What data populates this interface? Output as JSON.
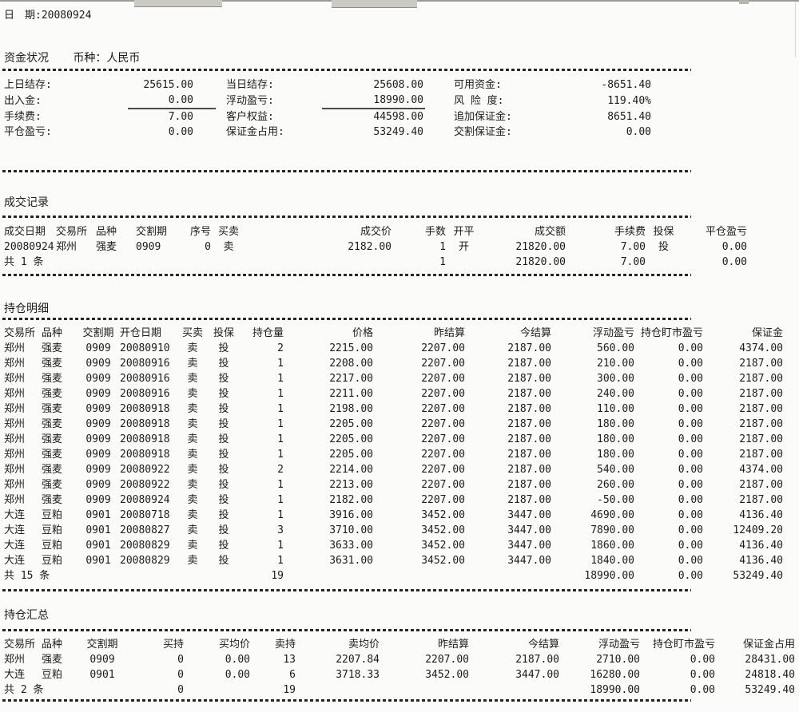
{
  "page": {
    "date_label": "日　期:",
    "date_value": "20080924"
  },
  "funds": {
    "title": "资金状况",
    "currency": "币种：人民币",
    "rows": [
      {
        "l1": "上日结存:",
        "v1": "25615.00",
        "l2": "当日结存:",
        "v2": "25608.00",
        "l3": "可用资金:",
        "v3": "-8651.40"
      },
      {
        "l1": "出入金:",
        "v1": "0.00",
        "l2": "浮动盈亏:",
        "v2": "18990.00",
        "l3": "风 险 度:",
        "v3": "119.40%"
      },
      {
        "l1": "手续费:",
        "v1": "7.00",
        "l2": "客户权益:",
        "v2": "44598.00",
        "l3": "追加保证金:",
        "v3": "8651.40"
      },
      {
        "l1": "平仓盈亏:",
        "v1": "0.00",
        "l2": "保证金占用:",
        "v2": "53249.40",
        "l3": "交割保证金:",
        "v3": "0.00"
      }
    ]
  },
  "trades": {
    "title": "成交记录",
    "headers": [
      "成交日期",
      "交易所",
      "品种",
      "交割期",
      "序号",
      "买卖",
      "成交价",
      "手数",
      "开平",
      "成交额",
      "手续费",
      "投保",
      "平仓盈亏"
    ],
    "rows": [
      [
        "20080924",
        "郑州",
        "强麦",
        "0909",
        "0",
        "卖",
        "2182.00",
        "1",
        "开",
        "21820.00",
        "7.00",
        "投",
        "0.00"
      ]
    ],
    "total_row": [
      "共 1 条",
      "",
      "",
      "",
      "",
      "",
      "",
      "1",
      "",
      "21820.00",
      "7.00",
      "",
      "0.00"
    ]
  },
  "positions": {
    "title": "持仓明细",
    "headers": [
      "交易所",
      "品种",
      "交割期",
      "开仓日期",
      "买卖",
      "投保",
      "持仓量",
      "价格",
      "昨结算",
      "今结算",
      "浮动盈亏",
      "持仓盯市盈亏",
      "保证金"
    ],
    "rows": [
      [
        "郑州",
        "强麦",
        "0909",
        "20080910",
        "卖",
        "投",
        "2",
        "2215.00",
        "2207.00",
        "2187.00",
        "560.00",
        "0.00",
        "4374.00"
      ],
      [
        "郑州",
        "强麦",
        "0909",
        "20080916",
        "卖",
        "投",
        "1",
        "2208.00",
        "2207.00",
        "2187.00",
        "210.00",
        "0.00",
        "2187.00"
      ],
      [
        "郑州",
        "强麦",
        "0909",
        "20080916",
        "卖",
        "投",
        "1",
        "2217.00",
        "2207.00",
        "2187.00",
        "300.00",
        "0.00",
        "2187.00"
      ],
      [
        "郑州",
        "强麦",
        "0909",
        "20080916",
        "卖",
        "投",
        "1",
        "2211.00",
        "2207.00",
        "2187.00",
        "240.00",
        "0.00",
        "2187.00"
      ],
      [
        "郑州",
        "强麦",
        "0909",
        "20080918",
        "卖",
        "投",
        "1",
        "2198.00",
        "2207.00",
        "2187.00",
        "110.00",
        "0.00",
        "2187.00"
      ],
      [
        "郑州",
        "强麦",
        "0909",
        "20080918",
        "卖",
        "投",
        "1",
        "2205.00",
        "2207.00",
        "2187.00",
        "180.00",
        "0.00",
        "2187.00"
      ],
      [
        "郑州",
        "强麦",
        "0909",
        "20080918",
        "卖",
        "投",
        "1",
        "2205.00",
        "2207.00",
        "2187.00",
        "180.00",
        "0.00",
        "2187.00"
      ],
      [
        "郑州",
        "强麦",
        "0909",
        "20080918",
        "卖",
        "投",
        "1",
        "2205.00",
        "2207.00",
        "2187.00",
        "180.00",
        "0.00",
        "2187.00"
      ],
      [
        "郑州",
        "强麦",
        "0909",
        "20080922",
        "卖",
        "投",
        "2",
        "2214.00",
        "2207.00",
        "2187.00",
        "540.00",
        "0.00",
        "4374.00"
      ],
      [
        "郑州",
        "强麦",
        "0909",
        "20080922",
        "卖",
        "投",
        "1",
        "2213.00",
        "2207.00",
        "2187.00",
        "260.00",
        "0.00",
        "2187.00"
      ],
      [
        "郑州",
        "强麦",
        "0909",
        "20080924",
        "卖",
        "投",
        "1",
        "2182.00",
        "2207.00",
        "2187.00",
        "-50.00",
        "0.00",
        "2187.00"
      ],
      [
        "大连",
        "豆粕",
        "0901",
        "20080718",
        "卖",
        "投",
        "1",
        "3916.00",
        "3452.00",
        "3447.00",
        "4690.00",
        "0.00",
        "4136.40"
      ],
      [
        "大连",
        "豆粕",
        "0901",
        "20080827",
        "卖",
        "投",
        "3",
        "3710.00",
        "3452.00",
        "3447.00",
        "7890.00",
        "0.00",
        "12409.20"
      ],
      [
        "大连",
        "豆粕",
        "0901",
        "20080829",
        "卖",
        "投",
        "1",
        "3633.00",
        "3452.00",
        "3447.00",
        "1860.00",
        "0.00",
        "4136.40"
      ],
      [
        "大连",
        "豆粕",
        "0901",
        "20080829",
        "卖",
        "投",
        "1",
        "3631.00",
        "3452.00",
        "3447.00",
        "1840.00",
        "0.00",
        "4136.40"
      ]
    ],
    "total_row": [
      "共 15 条",
      "",
      "",
      "",
      "",
      "",
      "19",
      "",
      "",
      "",
      "18990.00",
      "0.00",
      "53249.40"
    ]
  },
  "summary": {
    "title": "持仓汇总",
    "headers": [
      "交易所",
      "品种",
      "交割期",
      "买持",
      "买均价",
      "卖持",
      "卖均价",
      "昨结算",
      "今结算",
      "浮动盈亏",
      "持仓盯市盈亏",
      "保证金占用"
    ],
    "rows": [
      [
        "郑州",
        "强麦",
        "0909",
        "0",
        "0.00",
        "13",
        "2207.84",
        "2207.00",
        "2187.00",
        "2710.00",
        "0.00",
        "28431.00"
      ],
      [
        "大连",
        "豆粕",
        "0901",
        "0",
        "0.00",
        "6",
        "3718.33",
        "3452.00",
        "3447.00",
        "16280.00",
        "0.00",
        "24818.40"
      ]
    ],
    "total_row": [
      "共 2 条",
      "",
      "",
      "0",
      "",
      "19",
      "",
      "",
      "",
      "18990.00",
      "0.00",
      "53249.40"
    ]
  }
}
